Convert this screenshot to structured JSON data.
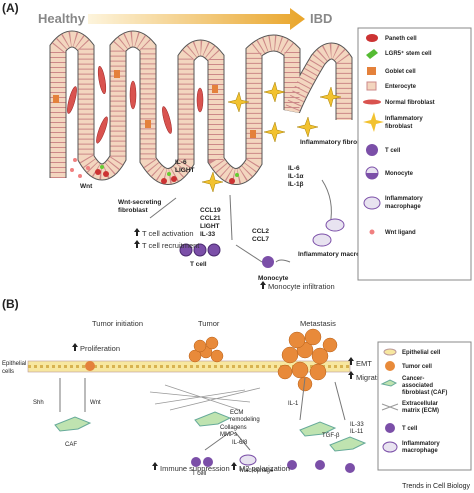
{
  "panel_a": {
    "label": "(A)",
    "gradient_start": "Healthy",
    "gradient_end": "IBD",
    "wnt": "Wnt",
    "wnt_fibroblast": [
      "Wnt-secreting",
      "fibroblast"
    ],
    "il6_light": [
      "IL-6",
      "LIGHT"
    ],
    "inflammatory_fibroblast": "Inflammatory fibroblast",
    "il_cytokines": [
      "IL-6",
      "IL-1α",
      "IL-1β"
    ],
    "ccl19_group": [
      "CCL19",
      "CCL21",
      "LIGHT",
      "IL-33"
    ],
    "ccl2_group": [
      "CCL2",
      "CCL7"
    ],
    "t_cell_activation": "T cell activation",
    "t_cell_recruitment": "T cell recruitment",
    "t_cell": "T cell",
    "inflammatory_macrophage": "Inflammatory macrophage",
    "monocyte": "Monocyte",
    "monocyte_infiltration": "Monocyte infiltration",
    "legend": [
      [
        "Paneth cell"
      ],
      [
        "LGR5⁺ stem cell"
      ],
      [
        "Goblet cell"
      ],
      [
        "Enterocyte"
      ],
      [
        "Normal fibroblast"
      ],
      [
        "Inflammatory",
        "fibroblast"
      ],
      [
        "T cell"
      ],
      [
        "Monocyte"
      ],
      [
        "Inflammatory",
        "macrophage"
      ],
      [
        "Wnt ligand"
      ]
    ]
  },
  "panel_b": {
    "label": "(B)",
    "tumor_initiation": "Tumor initiation",
    "tumor": "Tumor",
    "metastasis": "Metastasis",
    "epithelial_cells": [
      "Epithelial",
      "cells"
    ],
    "proliferation": "Proliferation",
    "shh": "Shh",
    "wnt": "Wnt",
    "caf": "CAF",
    "ecm_remodeling": [
      "ECM",
      "remodeling"
    ],
    "collagens": [
      "Collagens",
      "MMPs"
    ],
    "il68": "IL-6/8",
    "t_cell": "T cell",
    "macrophage": "Macrophage",
    "immune_suppression": "Immune suppression",
    "m2_polarization": "M2 polarization",
    "emt": "EMT",
    "migration": "Migration",
    "il1": "IL-1",
    "tgfb": "TGF-β",
    "il33_group": [
      "IL-33",
      "IL-11"
    ],
    "legend": [
      [
        "Epithelial cell"
      ],
      [
        "Tumor cell"
      ],
      [
        "Cancer-",
        "associated",
        "fibroblast (CAF)"
      ],
      [
        "Extracellular",
        "matrix (ECM)"
      ],
      [
        "T cell"
      ],
      [
        "Inflammatory",
        "macrophage"
      ]
    ]
  },
  "footer": "Trends in Cell Biology"
}
